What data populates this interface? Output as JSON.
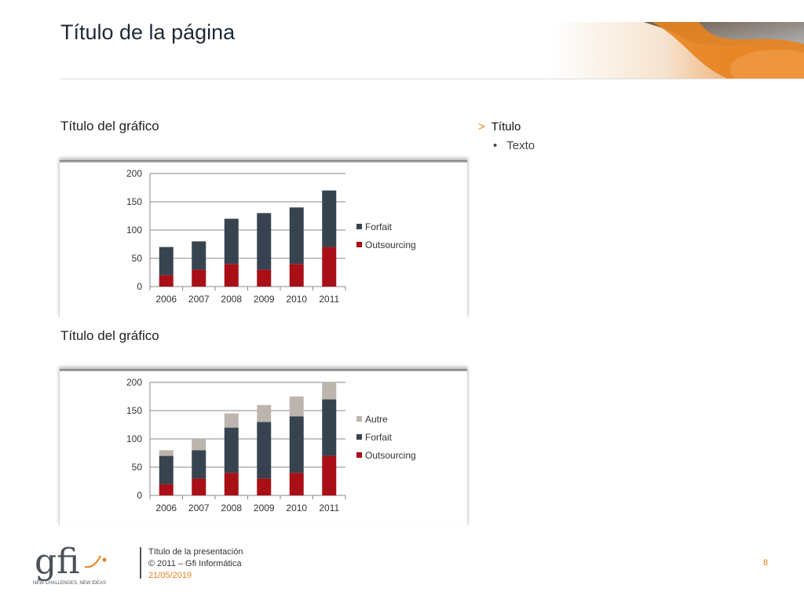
{
  "page": {
    "title": "Título de la página",
    "number": "8"
  },
  "sidebar": {
    "heading": "Título",
    "bullet": "Texto"
  },
  "footer": {
    "presentation_title": "Título de la presentación",
    "copyright": "© 2011 – Gfi Informática",
    "date": "21/05/2019",
    "logo_text": "gfi",
    "logo_tagline": "NEW CHALLENGES, NEW IDEAS"
  },
  "colors": {
    "forfait": "#37444f",
    "outsourcing": "#a80f16",
    "autre": "#bbb5ad",
    "accent": "#e8821e"
  },
  "chart_data": [
    {
      "type": "bar",
      "stacked": true,
      "title": "Título del gráfico",
      "categories": [
        "2006",
        "2007",
        "2008",
        "2009",
        "2010",
        "2011"
      ],
      "series": [
        {
          "name": "Outsourcing",
          "values": [
            20,
            30,
            40,
            30,
            40,
            70
          ]
        },
        {
          "name": "Forfait",
          "values": [
            50,
            50,
            80,
            100,
            100,
            100
          ]
        }
      ],
      "ylim": [
        0,
        200
      ],
      "yticks": [
        0,
        50,
        100,
        150,
        200
      ],
      "grid": true,
      "legend": "right",
      "legend_order": [
        "Forfait",
        "Outsourcing"
      ]
    },
    {
      "type": "bar",
      "stacked": true,
      "title": "Título del gráfico",
      "categories": [
        "2006",
        "2007",
        "2008",
        "2009",
        "2010",
        "2011"
      ],
      "series": [
        {
          "name": "Outsourcing",
          "values": [
            20,
            30,
            40,
            30,
            40,
            70
          ]
        },
        {
          "name": "Forfait",
          "values": [
            50,
            50,
            80,
            100,
            100,
            100
          ]
        },
        {
          "name": "Autre",
          "values": [
            10,
            20,
            25,
            30,
            35,
            30
          ]
        }
      ],
      "ylim": [
        0,
        200
      ],
      "yticks": [
        0,
        50,
        100,
        150,
        200
      ],
      "grid": true,
      "legend": "right",
      "legend_order": [
        "Autre",
        "Forfait",
        "Outsourcing"
      ]
    }
  ]
}
